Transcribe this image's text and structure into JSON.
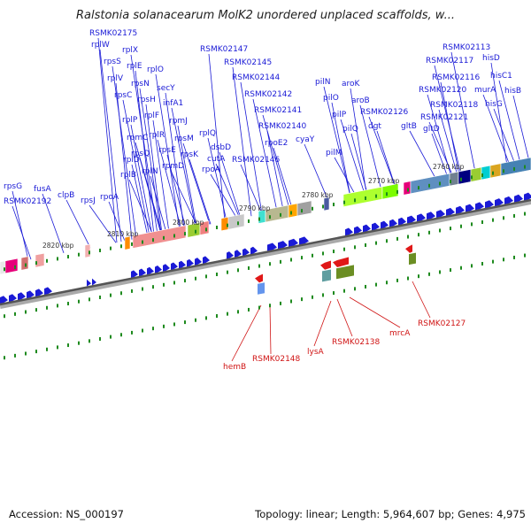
{
  "title": "Ralstonia solanacearum MolK2 unordered unplaced scaffolds, w...",
  "footer": {
    "accession": "Accession: NS_000197",
    "info": "Topology: linear; Length: 5,964,607 bp; Genes: 4,975"
  },
  "colors": {
    "forward_arrow": "#1a1ad6",
    "reverse_arrow": "#e01818",
    "label_forward": "#1a1ad6",
    "label_reverse": "#d01414",
    "tick": "#1e8a1e"
  },
  "ticks": [
    "2820 kbp",
    "2810 kbp",
    "2800 kbp",
    "2790 kbp",
    "2780 kbp",
    "2770 kbp",
    "2760 kbp"
  ],
  "forward_labels": [
    "rpsG",
    "RSMK02192",
    "fusA",
    "clpB",
    "rpsJ",
    "rpoA",
    "RSMK02175",
    "rplW",
    "rpsS",
    "rplX",
    "rplV",
    "rplE",
    "rpsN",
    "rplO",
    "rpsC",
    "rpsH",
    "secY",
    "rplP",
    "infA1",
    "rpmC",
    "rplF",
    "rpmJ",
    "rpsQ",
    "rplR",
    "rpsM",
    "rplD",
    "rpsE",
    "rpsK",
    "rplB",
    "rpmD",
    "rplN",
    "rplQ",
    "dsbD",
    "cutA",
    "rpoA",
    "RSMK02147",
    "RSMK02145",
    "RSMK02144",
    "RSMK02142",
    "RSMK02141",
    "RSMK02140",
    "rpoE2",
    "RSMK02146",
    "cyaY",
    "pilN",
    "aroK",
    "pilO",
    "aroB",
    "pilP",
    "RSMK02126",
    "pilQ",
    "dgt",
    "pilM",
    "RSMK02113",
    "RSMK02117",
    "hisD",
    "RSMK02116",
    "hisC1",
    "RSMK02120",
    "murA",
    "hisB",
    "RSMK02118",
    "hisG",
    "RSMK02121",
    "gltB",
    "gltD"
  ],
  "reverse_labels": [
    "hemB",
    "RSMK02148",
    "lysA",
    "RSMK02138",
    "mrcA",
    "RSMK02127"
  ]
}
